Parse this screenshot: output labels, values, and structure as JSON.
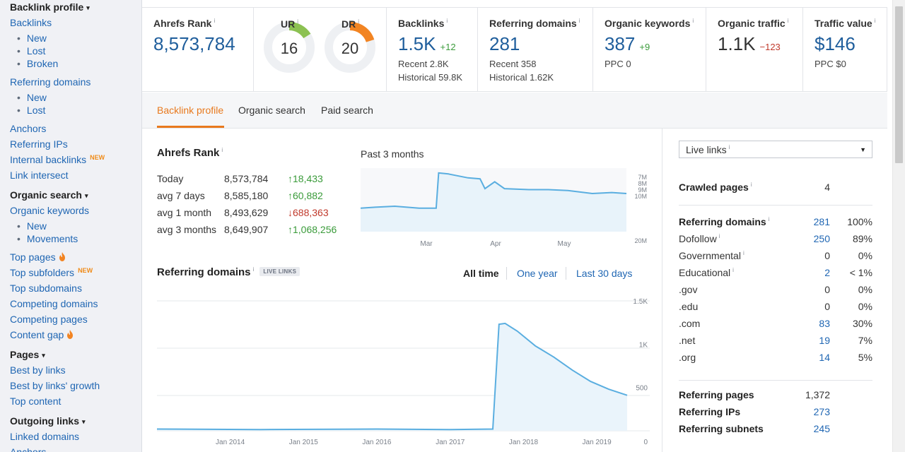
{
  "sidebar": {
    "backlink_profile": {
      "label": "Backlink profile",
      "caret": "▾"
    },
    "backlinks": "Backlinks",
    "backlinks_sub": [
      "New",
      "Lost",
      "Broken"
    ],
    "referring_domains": "Referring domains",
    "referring_domains_sub": [
      "New",
      "Lost"
    ],
    "anchors": "Anchors",
    "referring_ips": "Referring IPs",
    "internal_backlinks": "Internal backlinks",
    "new_badge": "NEW",
    "link_intersect": "Link intersect",
    "organic_search": {
      "label": "Organic search",
      "caret": "▾"
    },
    "organic_keywords": "Organic keywords",
    "organic_keywords_sub": [
      "New",
      "Movements"
    ],
    "top_pages": "Top pages",
    "top_subfolders": "Top subfolders",
    "top_subdomains": "Top subdomains",
    "competing_domains": "Competing domains",
    "competing_pages": "Competing pages",
    "content_gap": "Content gap",
    "pages": {
      "label": "Pages",
      "caret": "▾"
    },
    "best_by_links": "Best by links",
    "best_by_links_growth": "Best by links' growth",
    "top_content": "Top content",
    "outgoing_links": {
      "label": "Outgoing links",
      "caret": "▾"
    },
    "linked_domains": "Linked domains",
    "anchors2": "Anchors"
  },
  "info_mark": "i",
  "metrics": {
    "ahrefs_rank": {
      "title": "Ahrefs Rank",
      "value": "8,573,784"
    },
    "ur": {
      "title": "UR",
      "value": "16",
      "score": 16,
      "color": "#8cc152"
    },
    "dr": {
      "title": "DR",
      "value": "20",
      "score": 20,
      "color": "#f28422"
    },
    "backlinks": {
      "title": "Backlinks",
      "value": "1.5K",
      "delta": "+12",
      "recent": "Recent 2.8K",
      "historical": "Historical 59.8K"
    },
    "referring_domains": {
      "title": "Referring domains",
      "value": "281",
      "recent": "Recent 358",
      "historical": "Historical 1.62K"
    },
    "organic_keywords": {
      "title": "Organic keywords",
      "value": "387",
      "delta": "+9",
      "ppc": "PPC 0"
    },
    "organic_traffic": {
      "title": "Organic traffic",
      "value": "1.1K",
      "delta": "−123"
    },
    "traffic_value": {
      "title": "Traffic value",
      "value": "$146",
      "ppc": "PPC $0"
    }
  },
  "tabs": [
    "Backlink profile",
    "Organic search",
    "Paid search"
  ],
  "rank_section": {
    "title": "Ahrefs Rank",
    "rows": [
      {
        "label": "Today",
        "value": "8,573,784",
        "change": "18,433",
        "dir": "up"
      },
      {
        "label": "avg 7 days",
        "value": "8,585,180",
        "change": "60,882",
        "dir": "up"
      },
      {
        "label": "avg 1 month",
        "value": "8,493,629",
        "change": "688,363",
        "dir": "down"
      },
      {
        "label": "avg 3 months",
        "value": "8,649,907",
        "change": "1,068,256",
        "dir": "up"
      }
    ],
    "chart_caption": "Past 3 months"
  },
  "refdomains_section": {
    "title": "Referring domains",
    "pill": "LIVE LINKS",
    "periods": [
      "All time",
      "One year",
      "Last 30 days"
    ]
  },
  "right_panel": {
    "select": "Live links",
    "select_arrow": "▼",
    "crawled_pages": {
      "label": "Crawled pages",
      "value": "4"
    },
    "rows": [
      {
        "label": "Referring domains",
        "value": "281",
        "pct": "100%",
        "bold": true,
        "link": true,
        "info": true
      },
      {
        "label": "Dofollow",
        "value": "250",
        "pct": "89%",
        "bold": false,
        "link": true,
        "info": true
      },
      {
        "label": "Governmental",
        "value": "0",
        "pct": "0%",
        "bold": false,
        "link": false,
        "info": true
      },
      {
        "label": "Educational",
        "value": "2",
        "pct": "< 1%",
        "bold": false,
        "link": true,
        "info": true
      },
      {
        "label": ".gov",
        "value": "0",
        "pct": "0%",
        "bold": false,
        "link": false,
        "info": false
      },
      {
        "label": ".edu",
        "value": "0",
        "pct": "0%",
        "bold": false,
        "link": false,
        "info": false
      },
      {
        "label": ".com",
        "value": "83",
        "pct": "30%",
        "bold": false,
        "link": true,
        "info": false
      },
      {
        "label": ".net",
        "value": "19",
        "pct": "7%",
        "bold": false,
        "link": true,
        "info": false
      },
      {
        "label": ".org",
        "value": "14",
        "pct": "5%",
        "bold": false,
        "link": true,
        "info": false
      }
    ],
    "rows2": [
      {
        "label": "Referring pages",
        "value": "1,372",
        "link": false
      },
      {
        "label": "Referring IPs",
        "value": "273",
        "link": true
      },
      {
        "label": "Referring subnets",
        "value": "245",
        "link": true
      }
    ]
  },
  "chart_data": [
    {
      "type": "area",
      "name": "ahrefs-rank",
      "caption": "Past 3 months",
      "x_ticks": [
        "Mar",
        "Apr",
        "May"
      ],
      "y_ticks": [
        "7M",
        "8M",
        "9M",
        "10M",
        "20M"
      ],
      "y_inverted": true,
      "x": [
        "2019-02-14",
        "2019-02-20",
        "2019-02-28",
        "2019-03-10",
        "2019-03-17",
        "2019-03-18",
        "2019-03-22",
        "2019-03-30",
        "2019-04-04",
        "2019-04-06",
        "2019-04-10",
        "2019-04-14",
        "2019-04-24",
        "2019-05-02",
        "2019-05-10",
        "2019-05-20",
        "2019-05-28",
        "2019-06-03"
      ],
      "values": [
        9.6,
        9.5,
        9.4,
        9.6,
        9.6,
        6.0,
        6.1,
        6.5,
        6.6,
        7.6,
        6.9,
        7.6,
        7.7,
        7.7,
        7.8,
        8.1,
        8.0,
        8.1
      ]
    },
    {
      "type": "area",
      "name": "referring-domains",
      "x_ticks": [
        "Jan 2014",
        "Jan 2015",
        "Jan 2016",
        "Jan 2017",
        "Jan 2018",
        "Jan 2019"
      ],
      "y_ticks": [
        "0",
        "500",
        "1K",
        "1.5K"
      ],
      "ylim": [
        0,
        1500
      ],
      "x": [
        "2013-01",
        "2014-06",
        "2016-01",
        "2017-01",
        "2017-08",
        "2017-09",
        "2017-10",
        "2017-12",
        "2018-03",
        "2018-06",
        "2018-09",
        "2018-12",
        "2019-03",
        "2019-06"
      ],
      "values": [
        20,
        15,
        20,
        15,
        20,
        1230,
        1240,
        1150,
        980,
        850,
        700,
        570,
        480,
        410
      ]
    }
  ]
}
